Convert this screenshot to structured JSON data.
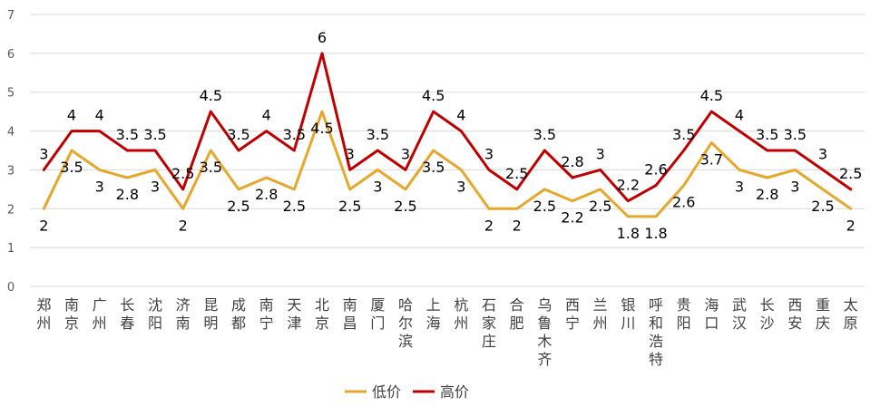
{
  "chart_data": {
    "type": "line",
    "title": "",
    "xlabel": "",
    "ylabel": "",
    "ylim": [
      0,
      7
    ],
    "yticks": [
      "0",
      "1",
      "2",
      "3",
      "4",
      "5",
      "6",
      "7"
    ],
    "grid": true,
    "legend_position": "bottom",
    "categories": [
      "郑州",
      "南京",
      "广州",
      "长春",
      "沈阳",
      "济南",
      "昆明",
      "成都",
      "南宁",
      "天津",
      "北京",
      "南昌",
      "厦门",
      "哈尔滨",
      "上海",
      "杭州",
      "石家庄",
      "合肥",
      "乌鲁木齐",
      "西宁",
      "兰州",
      "银川",
      "呼和浩特",
      "贵阳",
      "海口",
      "武汉",
      "长沙",
      "西安",
      "重庆",
      "太原"
    ],
    "series": [
      {
        "name": "低价",
        "color": "#E6A72B",
        "values": [
          2,
          3.5,
          3,
          2.8,
          3,
          2,
          3.5,
          2.5,
          2.8,
          2.5,
          4.5,
          2.5,
          3,
          2.5,
          3.5,
          3,
          2,
          2,
          2.5,
          2.2,
          2.5,
          1.8,
          1.8,
          2.6,
          3.7,
          3,
          2.8,
          3,
          2.5,
          2
        ],
        "labels": [
          "2",
          "3.5",
          "3",
          "2.8",
          "3",
          "2",
          "3.5",
          "2.5",
          "2.8",
          "2.5",
          "4.5",
          "2.5",
          "3",
          "2.5",
          "3.5",
          "3",
          "2",
          "2",
          "2.5",
          "2.2",
          "2.5",
          "1.8",
          "1.8",
          "2.6",
          "3.7",
          "3",
          "2.8",
          "3",
          "2.5",
          "2"
        ]
      },
      {
        "name": "高价",
        "color": "#C00000",
        "values": [
          3,
          4,
          4,
          3.5,
          3.5,
          2.5,
          4.5,
          3.5,
          4,
          3.5,
          6,
          3,
          3.5,
          3,
          4.5,
          4,
          3,
          2.5,
          3.5,
          2.8,
          3,
          2.2,
          2.6,
          3.5,
          4.5,
          4,
          3.5,
          3.5,
          3,
          2.5
        ],
        "labels": [
          "3",
          "4",
          "4",
          "3.5",
          "3.5",
          "2.5",
          "4.5",
          "3.5",
          "4",
          "3.5",
          "6",
          "3",
          "3.5",
          "3",
          "4.5",
          "4",
          "3",
          "2.5",
          "3.5",
          "2.8",
          "3",
          "2.2",
          "2.6",
          "3.5",
          "4.5",
          "4",
          "3.5",
          "3.5",
          "3",
          "2.5"
        ]
      }
    ]
  }
}
